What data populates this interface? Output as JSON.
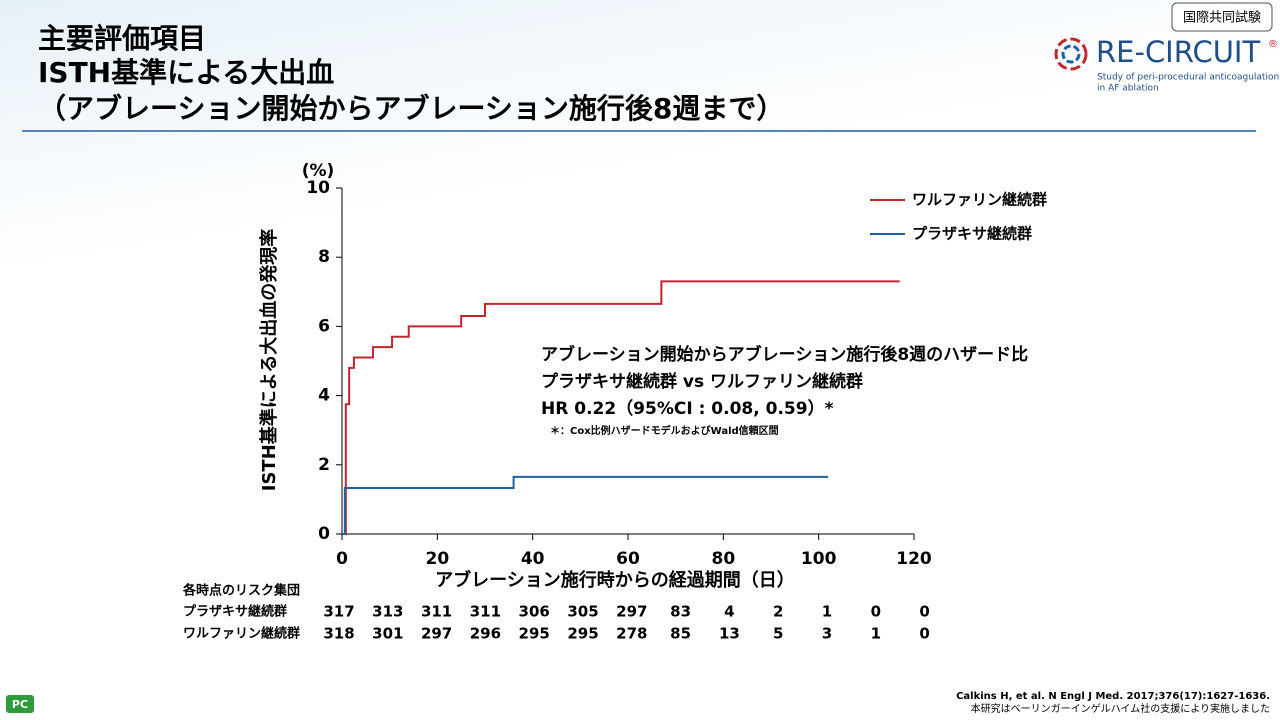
{
  "header": {
    "title_lines": [
      "主要評価項目",
      "ISTH基準による大出血",
      "（アブレーション開始からアブレーション施行後8週まで）"
    ],
    "badge": "国際共同試験",
    "logo": {
      "name": "RE-CIRCUIT",
      "mark": "®",
      "subtitle_lines": [
        "Study of peri-procedural anticoagulation",
        "in AF ablation"
      ]
    }
  },
  "chart_data": {
    "type": "step",
    "y_unit": "(%)",
    "y_label": "ISTH基準による大出血の発現率",
    "x_label": "アブレーション施行時からの経過期間（日）",
    "xlim": [
      0,
      120
    ],
    "xticks": [
      0,
      20,
      40,
      60,
      80,
      100,
      120
    ],
    "ylim": [
      0,
      10
    ],
    "yticks": [
      0,
      2,
      4,
      6,
      8,
      10
    ],
    "legend": "top-right",
    "series": [
      {
        "name": "ワルファリン継続群",
        "color": "#c0262d",
        "x": [
          0,
          0.8,
          1.5,
          2.5,
          6.5,
          10.5,
          14,
          25,
          30,
          67,
          117
        ],
        "values": [
          0,
          3.75,
          4.8,
          5.1,
          5.4,
          5.7,
          6.0,
          6.3,
          6.65,
          7.3,
          7.3
        ]
      },
      {
        "name": "プラザキサ継続群",
        "color": "#1f5fa6",
        "x": [
          0,
          0.6,
          36,
          102
        ],
        "values": [
          0,
          1.33,
          1.65,
          1.65
        ]
      }
    ],
    "annotation_lines": [
      "アブレーション開始からアブレーション施行後8週のハザード比",
      "プラザキサ継続群 vs ワルファリン継続群",
      "HR 0.22（95%CI : 0.08, 0.59）*"
    ],
    "annotation_note": "＊：Cox比例ハザードモデルおよびWald信頼区間"
  },
  "risk_table": {
    "title": "各時点のリスク集団",
    "rows": [
      {
        "label": "プラザキサ継続群",
        "values": [
          317,
          313,
          311,
          311,
          306,
          305,
          297,
          83,
          4,
          2,
          1,
          0,
          0
        ]
      },
      {
        "label": "ワルファリン継続群",
        "values": [
          318,
          301,
          297,
          296,
          295,
          295,
          278,
          85,
          13,
          5,
          3,
          1,
          0
        ]
      }
    ]
  },
  "footer": {
    "icon": "PC",
    "citation": "Calkins H, et al. N Engl J Med. 2017;376(17):1627-1636.",
    "support": "本研究はベーリンガーインゲルハイム社の支援により実施しました"
  }
}
